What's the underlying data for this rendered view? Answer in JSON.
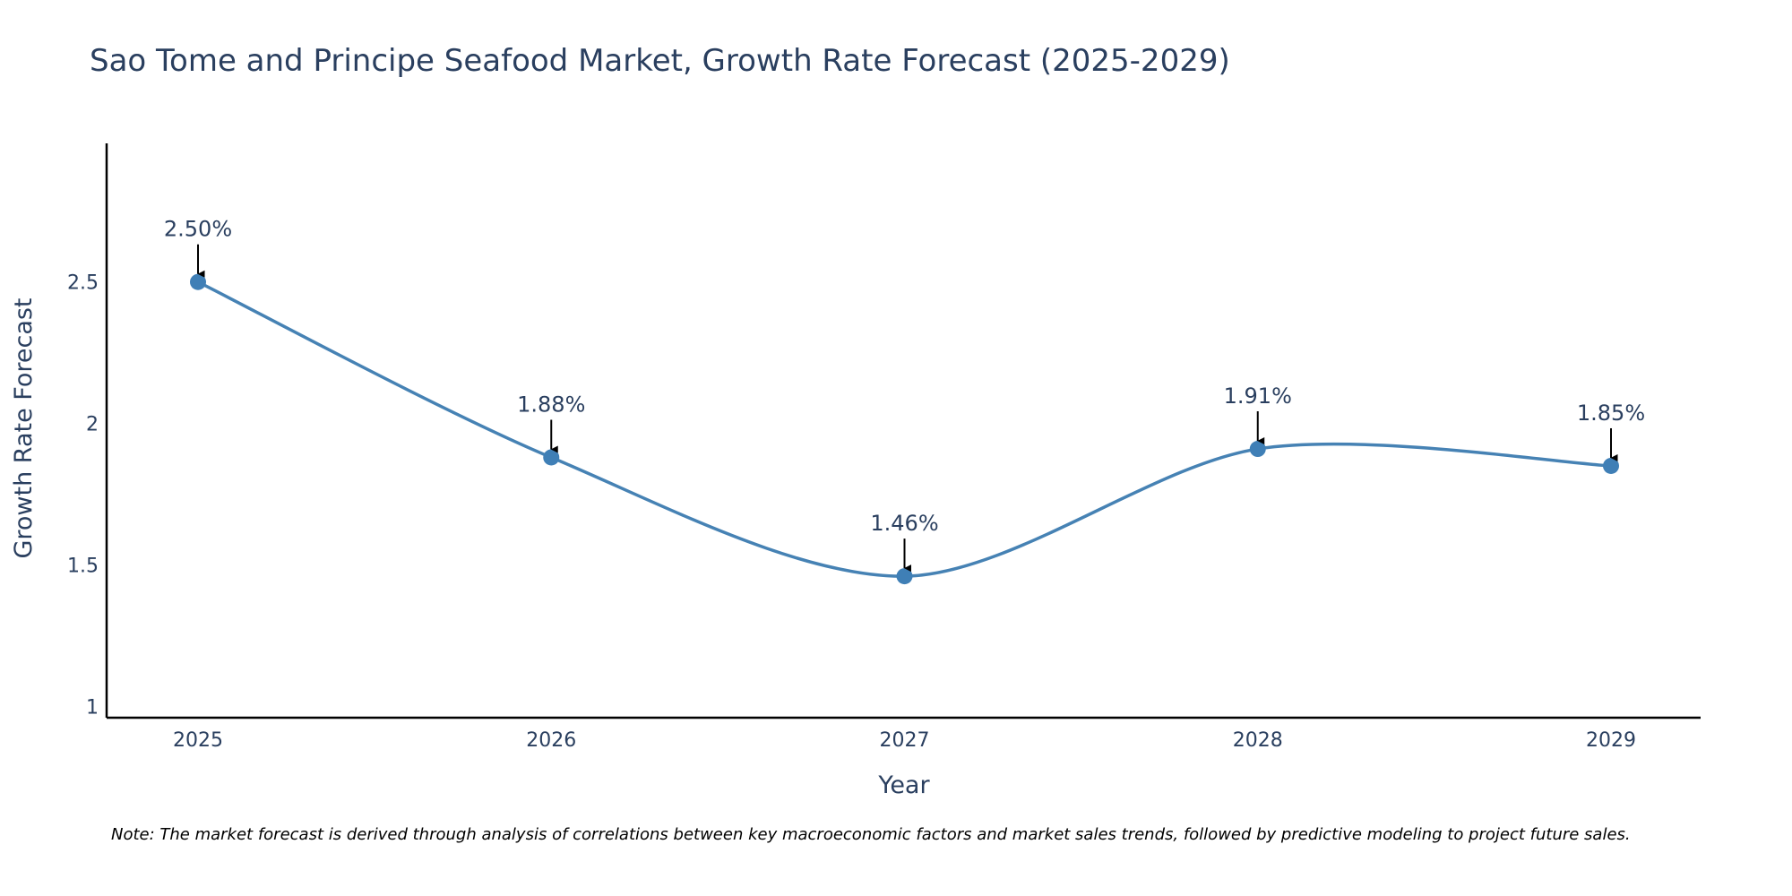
{
  "chart_data": {
    "type": "line",
    "title": "Sao Tome and Principe Seafood Market, Growth Rate Forecast (2025-2029)",
    "xlabel": "Year",
    "ylabel": "Growth Rate Forecast",
    "x": [
      "2025",
      "2026",
      "2027",
      "2028",
      "2029"
    ],
    "values": [
      2.5,
      1.88,
      1.46,
      1.91,
      1.85
    ],
    "labels": [
      "2.50%",
      "1.88%",
      "1.46%",
      "1.91%",
      "1.85%"
    ],
    "yticks": [
      "1",
      "1.5",
      "2",
      "2.5"
    ],
    "ylim": [
      0.96,
      2.99
    ],
    "grid": false,
    "line_shape": "spline",
    "colors": {
      "line": "#4682b4",
      "marker": "#3f7fb6",
      "arrow": "#000000",
      "text": "#2a3f5f"
    }
  },
  "note": "Note: The market forecast is derived through analysis of correlations between key macroeconomic factors and market sales trends, followed by predictive modeling to project future sales."
}
